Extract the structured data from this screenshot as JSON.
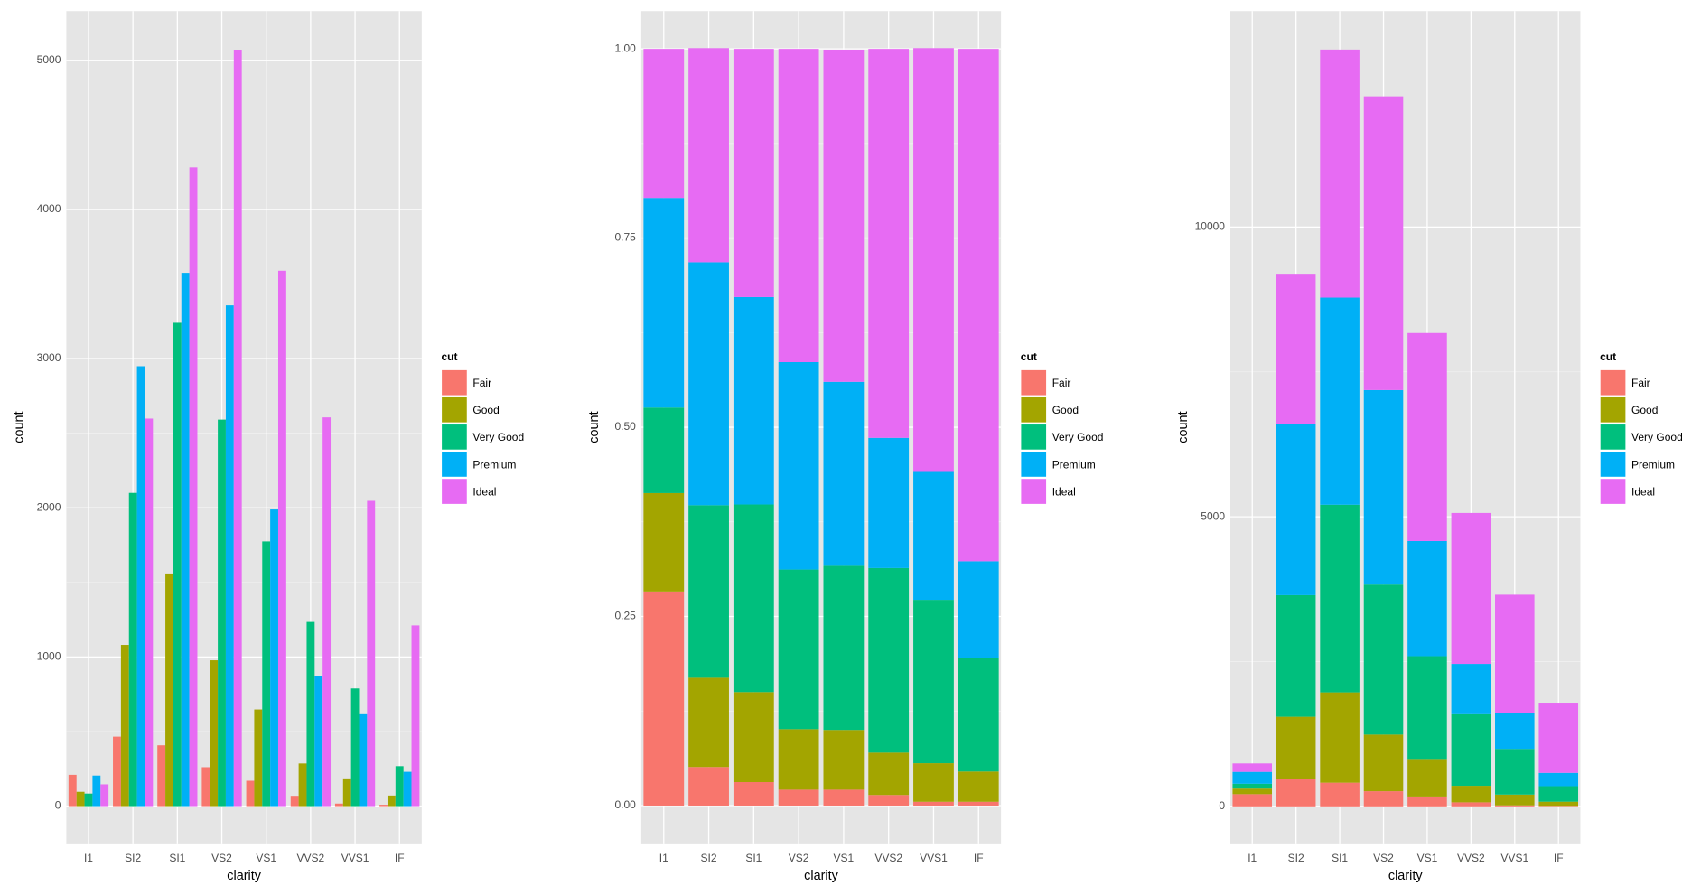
{
  "chart_data": [
    {
      "type": "bar",
      "barmode": "dodge",
      "x_label": "clarity",
      "y_label": "count",
      "legend_title": "cut",
      "categories": [
        "I1",
        "SI2",
        "SI1",
        "VS2",
        "VS1",
        "VVS2",
        "VVS1",
        "IF"
      ],
      "ylim": [
        -250,
        5330
      ],
      "yticks": [
        0,
        1000,
        2000,
        3000,
        4000,
        5000
      ],
      "grid": true,
      "series": [
        {
          "name": "Fair",
          "color": "#F8766D",
          "values": [
            210,
            466,
            408,
            261,
            170,
            69,
            17,
            9
          ]
        },
        {
          "name": "Good",
          "color": "#A3A500",
          "values": [
            96,
            1081,
            1560,
            978,
            648,
            286,
            186,
            71
          ]
        },
        {
          "name": "Very Good",
          "color": "#00BF7D",
          "values": [
            84,
            2100,
            3240,
            2591,
            1775,
            1235,
            789,
            268
          ]
        },
        {
          "name": "Premium",
          "color": "#00B0F6",
          "values": [
            205,
            2949,
            3575,
            3357,
            1989,
            870,
            616,
            230
          ]
        },
        {
          "name": "Ideal",
          "color": "#E76BF3",
          "values": [
            146,
            2598,
            4282,
            5071,
            3589,
            2606,
            2047,
            1212
          ]
        }
      ]
    },
    {
      "type": "bar",
      "barmode": "stack",
      "x_label": "clarity",
      "y_label": "count",
      "legend_title": "cut",
      "categories": [
        "I1",
        "SI2",
        "SI1",
        "VS2",
        "VS1",
        "VVS2",
        "VVS1",
        "IF"
      ],
      "ylim": [
        -0.05,
        1.05
      ],
      "yticks": [
        {
          "value": 0,
          "label": "0.00"
        },
        {
          "value": 0.25,
          "label": "0.25"
        },
        {
          "value": 0.5,
          "label": "0.50"
        },
        {
          "value": 0.75,
          "label": "0.75"
        },
        {
          "value": 1,
          "label": "1.00"
        }
      ],
      "grid": true,
      "series": [
        {
          "name": "Fair",
          "color": "#F8766D",
          "values": [
            0.283,
            0.051,
            0.031,
            0.021,
            0.021,
            0.014,
            0.005,
            0.005
          ]
        },
        {
          "name": "Good",
          "color": "#A3A500",
          "values": [
            0.13,
            0.118,
            0.119,
            0.08,
            0.079,
            0.056,
            0.051,
            0.04
          ]
        },
        {
          "name": "Very Good",
          "color": "#00BF7D",
          "values": [
            0.113,
            0.228,
            0.248,
            0.211,
            0.217,
            0.244,
            0.216,
            0.15
          ]
        },
        {
          "name": "Premium",
          "color": "#00B0F6",
          "values": [
            0.277,
            0.321,
            0.274,
            0.274,
            0.243,
            0.172,
            0.169,
            0.128
          ]
        },
        {
          "name": "Ideal",
          "color": "#E76BF3",
          "values": [
            0.197,
            0.283,
            0.328,
            0.414,
            0.439,
            0.514,
            0.56,
            0.677
          ]
        }
      ]
    },
    {
      "type": "bar",
      "barmode": "stack",
      "x_label": "clarity",
      "y_label": "count",
      "legend_title": "cut",
      "categories": [
        "I1",
        "SI2",
        "SI1",
        "VS2",
        "VS1",
        "VVS2",
        "VVS1",
        "IF"
      ],
      "ylim": [
        -640,
        13730
      ],
      "yticks": [
        0,
        5000,
        10000
      ],
      "grid": true,
      "series": [
        {
          "name": "Fair",
          "color": "#F8766D",
          "values": [
            210,
            466,
            408,
            261,
            170,
            69,
            17,
            9
          ]
        },
        {
          "name": "Good",
          "color": "#A3A500",
          "values": [
            96,
            1081,
            1560,
            978,
            648,
            286,
            186,
            71
          ]
        },
        {
          "name": "Very Good",
          "color": "#00BF7D",
          "values": [
            84,
            2100,
            3240,
            2591,
            1775,
            1235,
            789,
            268
          ]
        },
        {
          "name": "Premium",
          "color": "#00B0F6",
          "values": [
            205,
            2949,
            3575,
            3357,
            1989,
            870,
            616,
            230
          ]
        },
        {
          "name": "Ideal",
          "color": "#E76BF3",
          "values": [
            146,
            2598,
            4282,
            5071,
            3589,
            2606,
            2047,
            1212
          ]
        }
      ]
    }
  ]
}
